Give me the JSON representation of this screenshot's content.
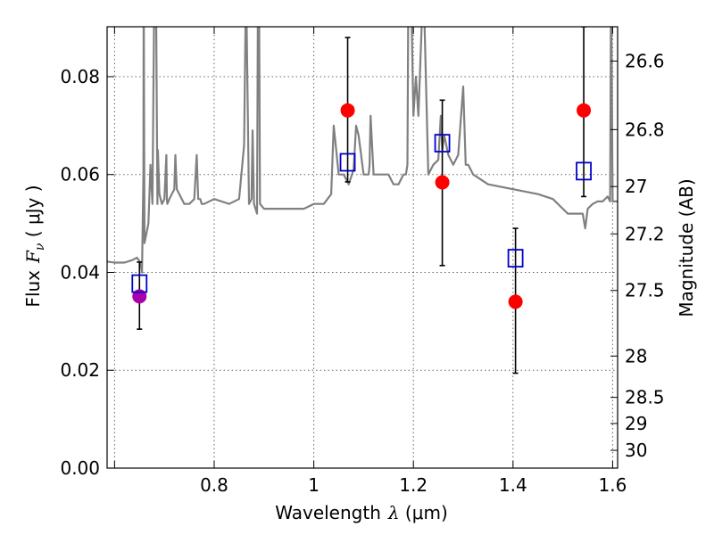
{
  "chart_data": {
    "type": "scatter",
    "xlabel": {
      "prefix": "Wavelength",
      "sym": "λ",
      "unit": " (μm)"
    },
    "ylabel": {
      "prefix": "Flux",
      "sym": "F",
      "sub": "ν",
      "unit": " ( μJy )"
    },
    "y2label": "Magnitude (AB)",
    "xlim": [
      0.585,
      1.61
    ],
    "ylim": [
      0.0,
      0.0902
    ],
    "x_ticks": [
      0.6,
      0.8,
      1.0,
      1.2,
      1.4,
      1.6
    ],
    "x_tick_labels": [
      "",
      "0.8",
      "1",
      "1.2",
      "1.4",
      "1.6"
    ],
    "y_ticks": [
      0.0,
      0.02,
      0.04,
      0.06,
      0.08
    ],
    "y_tick_labels": [
      "0.00",
      "0.02",
      "0.04",
      "0.06",
      "0.08"
    ],
    "mag_ticks": [
      26.6,
      26.8,
      27,
      27.2,
      27.5,
      28,
      28.5,
      29,
      30
    ],
    "mag_tick_labels": [
      "26.6",
      "26.8",
      "27",
      "27.2",
      "27.5",
      "28",
      "28.5",
      "29",
      "30"
    ],
    "grid": true,
    "series": [
      {
        "marker": "filled-circle",
        "color": "#ff0000",
        "points": [
          {
            "x": 1.068,
            "y": 0.0731,
            "yerr_low": 0.0585,
            "yerr_high": 0.088
          },
          {
            "x": 1.258,
            "y": 0.0584,
            "yerr_low": 0.0414,
            "yerr_high": 0.0752
          },
          {
            "x": 1.405,
            "y": 0.034,
            "yerr_low": 0.0194,
            "yerr_high": 0.049
          },
          {
            "x": 1.542,
            "y": 0.0731,
            "yerr_low": 0.0555,
            "yerr_high": 0.0902
          }
        ]
      },
      {
        "marker": "filled-circle",
        "color": "#aa00aa",
        "points": [
          {
            "x": 0.65,
            "y": 0.0351,
            "yerr_low": 0.0284,
            "yerr_high": 0.0421
          }
        ]
      },
      {
        "marker": "open-square",
        "color": "#0000cc",
        "points": [
          {
            "x": 0.65,
            "y": 0.0377
          },
          {
            "x": 1.068,
            "y": 0.0625
          },
          {
            "x": 1.258,
            "y": 0.0664
          },
          {
            "x": 1.405,
            "y": 0.0429
          },
          {
            "x": 1.542,
            "y": 0.0607
          }
        ]
      }
    ],
    "model_spectrum": {
      "color": "#808080",
      "x": [
        0.585,
        0.6,
        0.62,
        0.635,
        0.645,
        0.652,
        0.655,
        0.658,
        0.6585,
        0.66,
        0.664,
        0.668,
        0.672,
        0.676,
        0.68,
        0.683,
        0.686,
        0.687,
        0.69,
        0.695,
        0.7,
        0.704,
        0.705,
        0.706,
        0.71,
        0.715,
        0.72,
        0.722,
        0.725,
        0.73,
        0.74,
        0.75,
        0.76,
        0.765,
        0.768,
        0.772,
        0.775,
        0.78,
        0.8,
        0.83,
        0.85,
        0.86,
        0.864,
        0.87,
        0.875,
        0.877,
        0.88,
        0.886,
        0.888,
        0.89,
        0.892,
        0.9,
        0.92,
        0.95,
        0.98,
        1.0,
        1.02,
        1.035,
        1.04,
        1.05,
        1.06,
        1.07,
        1.08,
        1.085,
        1.09,
        1.1,
        1.11,
        1.112,
        1.114,
        1.12,
        1.13,
        1.15,
        1.16,
        1.17,
        1.18,
        1.185,
        1.188,
        1.19,
        1.195,
        1.2,
        1.205,
        1.21,
        1.22,
        1.23,
        1.24,
        1.25,
        1.255,
        1.258,
        1.262,
        1.27,
        1.28,
        1.29,
        1.3,
        1.305,
        1.31,
        1.32,
        1.35,
        1.4,
        1.45,
        1.48,
        1.5,
        1.51,
        1.52,
        1.53,
        1.54,
        1.545,
        1.55,
        1.56,
        1.57,
        1.58,
        1.59,
        1.595,
        1.597,
        1.6,
        1.61
      ],
      "y": [
        0.0422,
        0.042,
        0.042,
        0.0425,
        0.043,
        0.042,
        0.04,
        0.06,
        0.1,
        0.046,
        0.048,
        0.05,
        0.062,
        0.054,
        0.1,
        0.1,
        0.054,
        0.065,
        0.056,
        0.054,
        0.055,
        0.064,
        0.055,
        0.054,
        0.055,
        0.056,
        0.057,
        0.064,
        0.057,
        0.056,
        0.054,
        0.054,
        0.055,
        0.064,
        0.055,
        0.055,
        0.054,
        0.054,
        0.055,
        0.054,
        0.055,
        0.066,
        0.1,
        0.054,
        0.055,
        0.069,
        0.054,
        0.052,
        0.1,
        0.1,
        0.054,
        0.053,
        0.053,
        0.053,
        0.053,
        0.054,
        0.054,
        0.056,
        0.07,
        0.06,
        0.06,
        0.058,
        0.061,
        0.07,
        0.068,
        0.06,
        0.06,
        0.062,
        0.072,
        0.06,
        0.06,
        0.06,
        0.058,
        0.058,
        0.06,
        0.06,
        0.062,
        0.1,
        0.1,
        0.072,
        0.08,
        0.072,
        0.1,
        0.06,
        0.062,
        0.063,
        0.072,
        0.065,
        0.068,
        0.064,
        0.062,
        0.064,
        0.078,
        0.062,
        0.062,
        0.06,
        0.058,
        0.057,
        0.056,
        0.055,
        0.053,
        0.052,
        0.052,
        0.052,
        0.052,
        0.049,
        0.053,
        0.054,
        0.0545,
        0.0545,
        0.0555,
        0.0545,
        0.1,
        0.0545,
        0.0545
      ]
    }
  }
}
